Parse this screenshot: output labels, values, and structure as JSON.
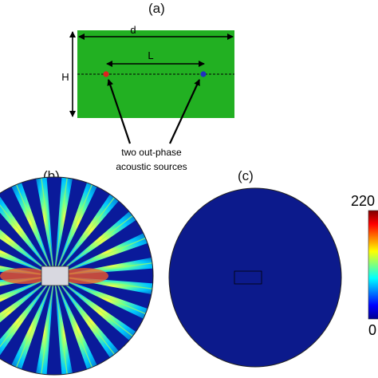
{
  "panels": {
    "a": {
      "label": "(a)"
    },
    "b": {
      "label": "(b)"
    },
    "c": {
      "label": "(c)"
    }
  },
  "schematic": {
    "d_label": "d",
    "L_label": "L",
    "H_label": "H",
    "caption_line1": "two out-phase",
    "caption_line2": "acoustic sources",
    "domain_color": "#22b022",
    "source_left_color": "#e02020",
    "source_right_color": "#2030c0"
  },
  "colorbar": {
    "max_label": "220",
    "min_label": "0"
  },
  "field_b": {
    "background_color": "#0a1a9a",
    "beam_count": 24
  },
  "field_c": {
    "background_color": "#0c1a8c"
  }
}
